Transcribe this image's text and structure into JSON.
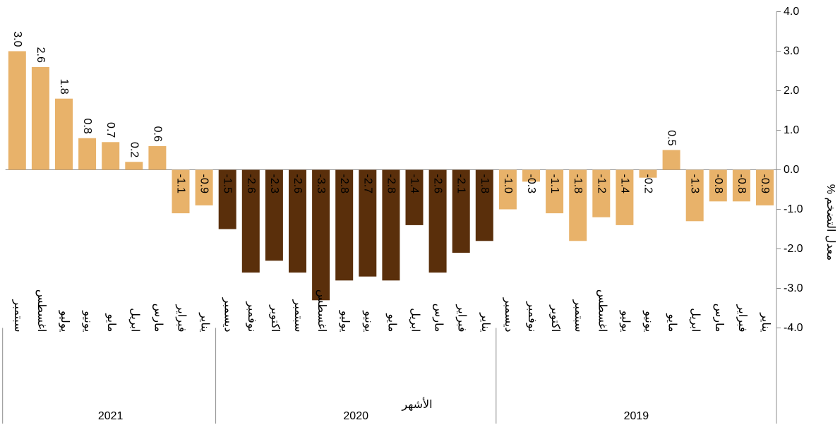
{
  "chart_data": {
    "type": "bar",
    "y_axis_side": "right",
    "x_direction": "right-to-left",
    "ylabel": "معدل التضخم %",
    "xlabel": "الأشهر",
    "ylim": [
      -4.0,
      4.0
    ],
    "yticks": [
      4.0,
      3.0,
      2.0,
      1.0,
      0.0,
      -1.0,
      -2.0,
      -3.0,
      -4.0
    ],
    "ytick_labels": [
      "4.0",
      "3.0",
      "2.0",
      "1.0",
      "0.0",
      "-1.0",
      "-2.0",
      "-3.0",
      "-4.0"
    ],
    "grid": false,
    "legend": "none",
    "colors": {
      "default": "#E8B26A",
      "highlight": "#5A2F0B"
    },
    "groups": [
      {
        "label": "2019",
        "bars": [
          {
            "month": "يناير",
            "value": -0.9,
            "label": "-0.9",
            "highlight": false
          },
          {
            "month": "فبراير",
            "value": -0.8,
            "label": "-0.8",
            "highlight": false
          },
          {
            "month": "مارس",
            "value": -0.8,
            "label": "-0.8",
            "highlight": false
          },
          {
            "month": "ابريل",
            "value": -1.3,
            "label": "-1.3",
            "highlight": false
          },
          {
            "month": "مايو",
            "value": 0.5,
            "label": "0.5",
            "highlight": false
          },
          {
            "month": "يونيو",
            "value": -0.2,
            "label": "-0.2",
            "highlight": false
          },
          {
            "month": "يوليو",
            "value": -1.4,
            "label": "-1.4",
            "highlight": false
          },
          {
            "month": "اغسطس",
            "value": -1.2,
            "label": "-1.2",
            "highlight": false
          },
          {
            "month": "سبتمبر",
            "value": -1.8,
            "label": "-1.8",
            "highlight": false
          },
          {
            "month": "اكتوبر",
            "value": -1.1,
            "label": "-1.1",
            "highlight": false
          },
          {
            "month": "نوفمبر",
            "value": -0.3,
            "label": "-0.3",
            "highlight": false
          },
          {
            "month": "ديسمبر",
            "value": -1.0,
            "label": "-1.0",
            "highlight": false
          }
        ]
      },
      {
        "label": "2020",
        "bars": [
          {
            "month": "يناير",
            "value": -1.8,
            "label": "-1.8",
            "highlight": true
          },
          {
            "month": "فبراير",
            "value": -2.1,
            "label": "-2.1",
            "highlight": true
          },
          {
            "month": "مارس",
            "value": -2.6,
            "label": "-2.6",
            "highlight": true
          },
          {
            "month": "ابريل",
            "value": -1.4,
            "label": "-1.4",
            "highlight": true
          },
          {
            "month": "مايو",
            "value": -2.8,
            "label": "-2.8",
            "highlight": true
          },
          {
            "month": "يونيو",
            "value": -2.7,
            "label": "-2.7",
            "highlight": true
          },
          {
            "month": "يوليو",
            "value": -2.8,
            "label": "-2.8",
            "highlight": true
          },
          {
            "month": "اغسطس",
            "value": -3.3,
            "label": "-3.3",
            "highlight": true
          },
          {
            "month": "سبتمبر",
            "value": -2.6,
            "label": "-2.6",
            "highlight": true
          },
          {
            "month": "اكتوبر",
            "value": -2.3,
            "label": "-2.3",
            "highlight": true
          },
          {
            "month": "نوفمبر",
            "value": -2.6,
            "label": "-2.6",
            "highlight": true
          },
          {
            "month": "ديسمبر",
            "value": -1.5,
            "label": "-1.5",
            "highlight": true
          }
        ]
      },
      {
        "label": "2021",
        "bars": [
          {
            "month": "يناير",
            "value": -0.9,
            "label": "-0.9",
            "highlight": false
          },
          {
            "month": "فبراير",
            "value": -1.1,
            "label": "-1.1",
            "highlight": false
          },
          {
            "month": "مارس",
            "value": 0.6,
            "label": "0.6",
            "highlight": false
          },
          {
            "month": "ابريل",
            "value": 0.2,
            "label": "0.2",
            "highlight": false
          },
          {
            "month": "مايو",
            "value": 0.7,
            "label": "0.7",
            "highlight": false
          },
          {
            "month": "يونيو",
            "value": 0.8,
            "label": "0.8",
            "highlight": false
          },
          {
            "month": "يوليو",
            "value": 1.8,
            "label": "1.8",
            "highlight": false
          },
          {
            "month": "اغسطس",
            "value": 2.6,
            "label": "2.6",
            "highlight": false
          },
          {
            "month": "سبتمبر",
            "value": 3.0,
            "label": "3.0",
            "highlight": false
          }
        ]
      }
    ]
  }
}
